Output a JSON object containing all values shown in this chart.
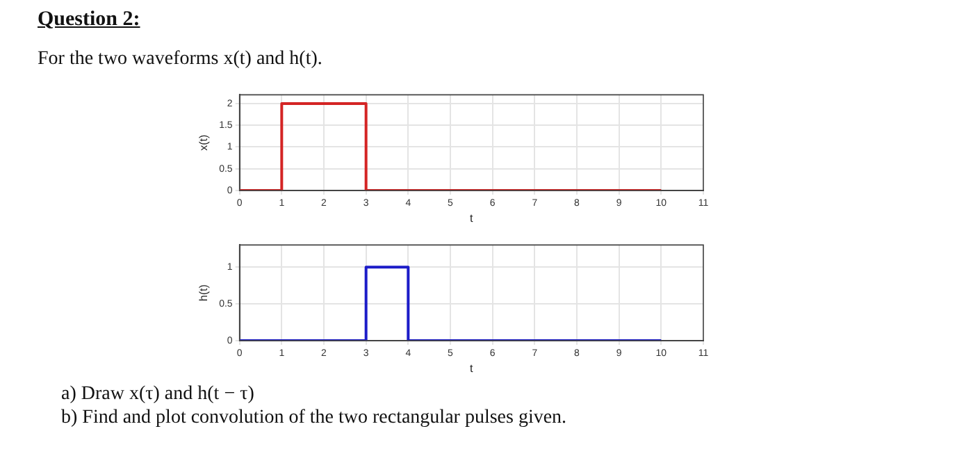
{
  "chart_data": [
    {
      "type": "line",
      "title": "Question 2:",
      "subtitle": "For the two waveforms x(t) and h(t).",
      "xlabel": "t",
      "ylabel": "x(t)",
      "xlim": [
        0,
        11
      ],
      "xticks": [
        0,
        1,
        2,
        3,
        4,
        5,
        6,
        7,
        8,
        9,
        10,
        11
      ],
      "ylim": [
        0,
        2.2
      ],
      "yticks": [
        0,
        0.5,
        1,
        1.5,
        2
      ],
      "grid": true,
      "marker": "none",
      "series": [
        {
          "color": "#d42424",
          "x": [
            0,
            1,
            1,
            3,
            3,
            10
          ],
          "values": [
            0,
            0,
            2,
            2,
            0,
            0
          ]
        }
      ]
    },
    {
      "type": "line",
      "xlabel": "t",
      "ylabel": "h(t)",
      "xlim": [
        0,
        11
      ],
      "xticks": [
        0,
        1,
        2,
        3,
        4,
        5,
        6,
        7,
        8,
        9,
        10,
        11
      ],
      "ylim": [
        0,
        1.3
      ],
      "yticks": [
        0,
        0.5,
        1
      ],
      "grid": true,
      "marker": "none",
      "annotations": [
        "a) Draw x(τ) and h(t − τ)",
        "b) Find and plot convolution of the two rectangular pulses given."
      ],
      "series": [
        {
          "color": "#1c1cc8",
          "x": [
            0,
            3,
            3,
            4,
            4,
            10
          ],
          "values": [
            0,
            0,
            1,
            1,
            0,
            0
          ]
        }
      ]
    }
  ]
}
